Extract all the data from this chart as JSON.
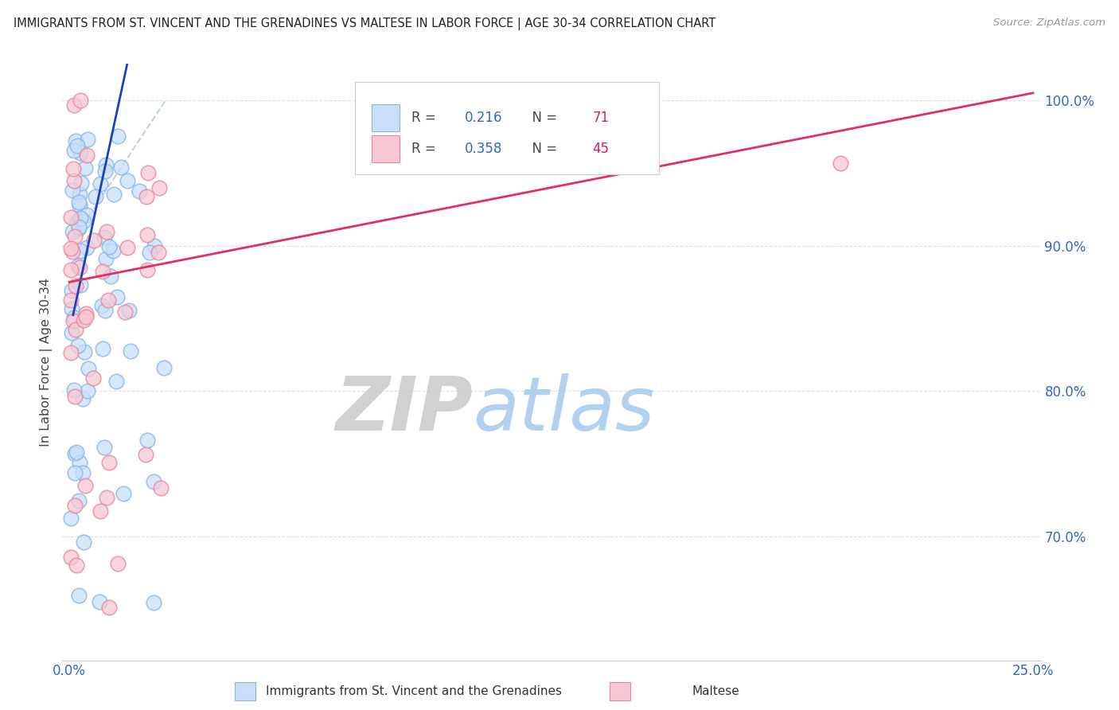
{
  "title": "IMMIGRANTS FROM ST. VINCENT AND THE GRENADINES VS MALTESE IN LABOR FORCE | AGE 30-34 CORRELATION CHART",
  "source": "Source: ZipAtlas.com",
  "ylabel": "In Labor Force | Age 30-34",
  "xlim": [
    -0.002,
    0.252
  ],
  "ylim": [
    0.615,
    1.025
  ],
  "blue_R": 0.216,
  "blue_N": 71,
  "pink_R": 0.358,
  "pink_N": 45,
  "blue_face_color": "#c8dff7",
  "blue_edge_color": "#85b5e8",
  "pink_face_color": "#f7c8d4",
  "pink_edge_color": "#e885a0",
  "blue_line_color": "#1a44bb",
  "pink_line_color": "#e03060",
  "ref_line_color": "#bbccdd",
  "legend_text_color": "#444444",
  "legend_R_color": "#3366cc",
  "legend_N_color": "#cc2266",
  "watermark_zip_color": "#cccccc",
  "watermark_atlas_color": "#aaccee",
  "grid_color": "#dddddd",
  "axis_color": "#cccccc",
  "tick_color": "#3366cc",
  "ylabel_color": "#444444",
  "source_color": "#999999",
  "title_color": "#222222",
  "figsize": [
    14.06,
    8.92
  ],
  "dpi": 100
}
